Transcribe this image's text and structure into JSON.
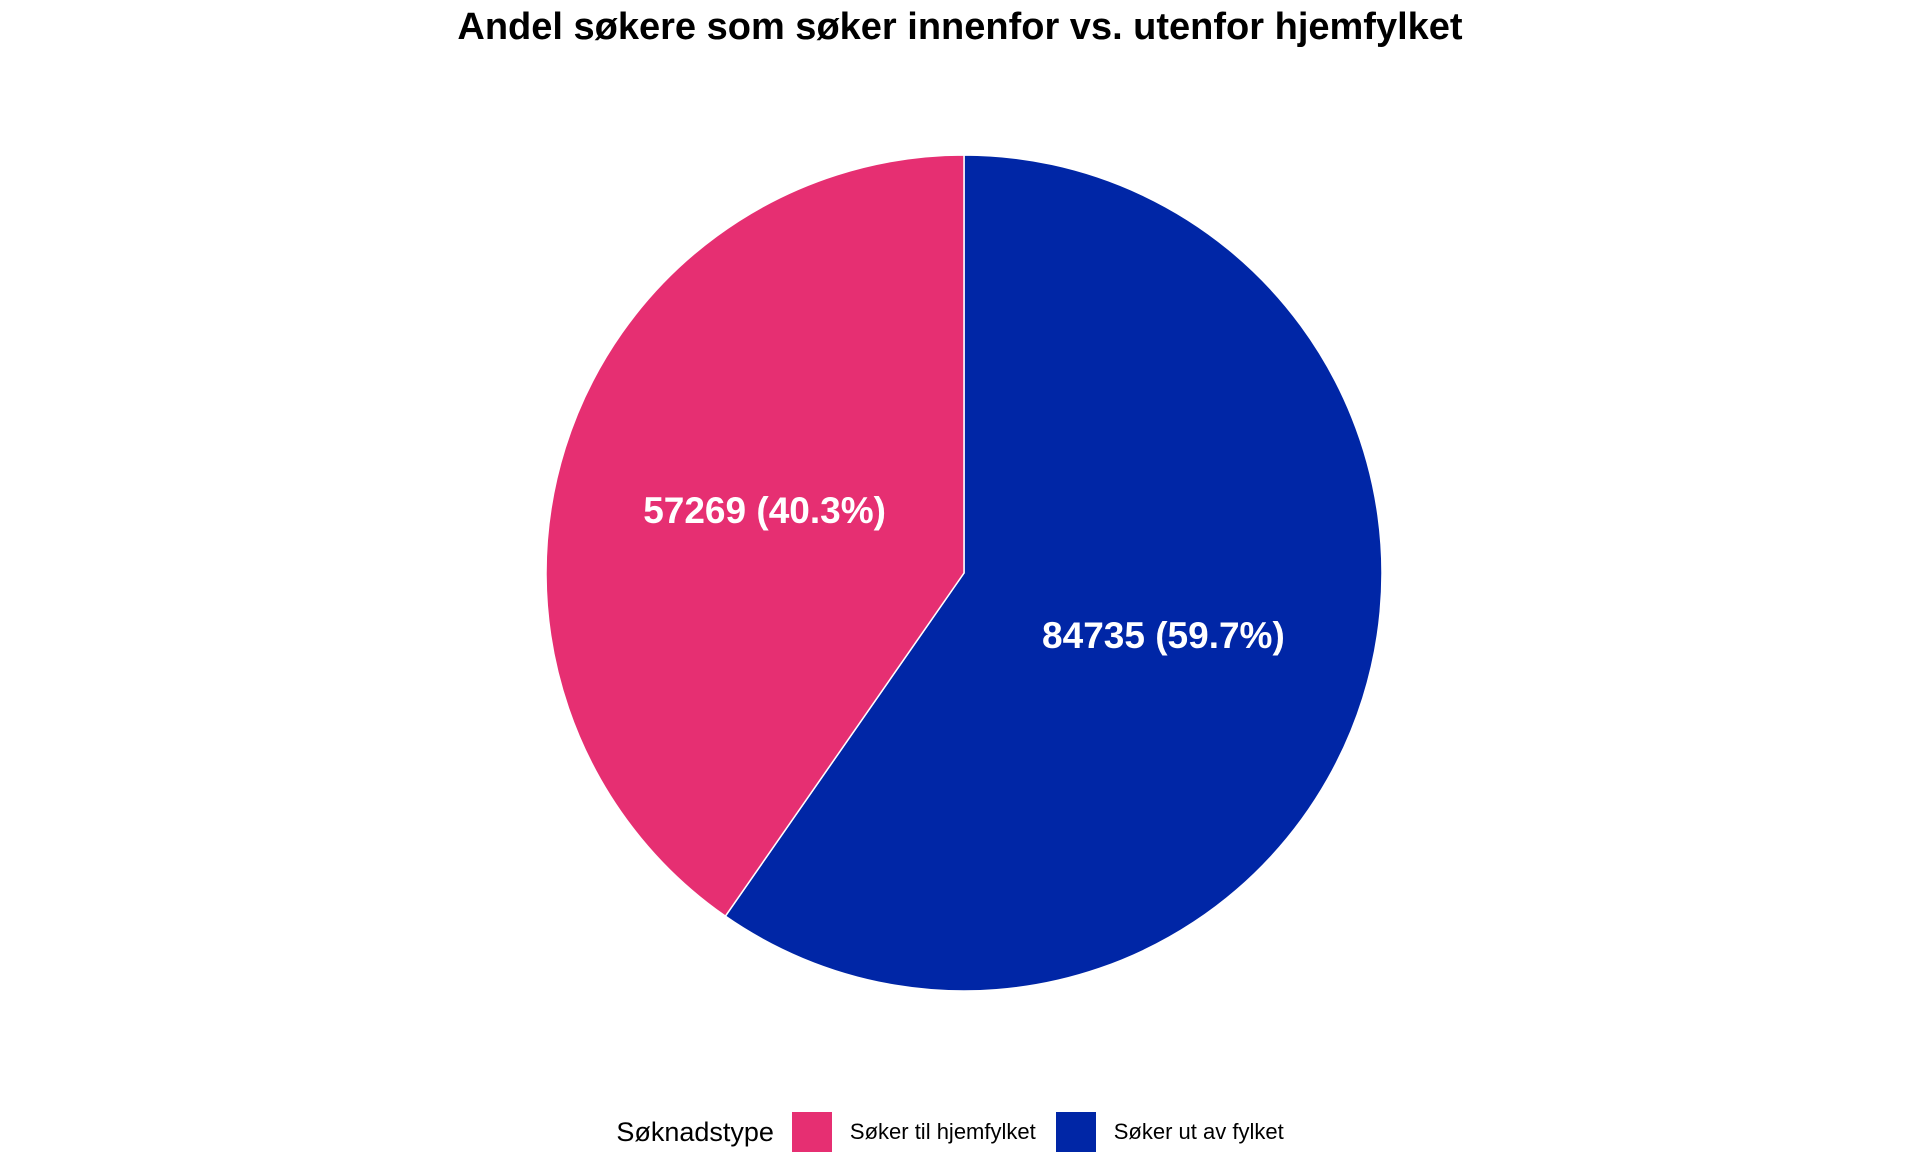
{
  "chart_data": {
    "type": "pie",
    "title": "Andel søkere som søker innenfor vs. utenfor hjemfylket",
    "legend_title": "Søknadstype",
    "legend_position": "bottom",
    "slices": [
      {
        "name": "Søker ut av fylket",
        "value": 84735,
        "percent": 59.7,
        "label": "84735 (59.7%)",
        "color": "#0026A6"
      },
      {
        "name": "Søker til hjemfylket",
        "value": 57269,
        "percent": 40.3,
        "label": "57269 (40.3%)",
        "color": "#E62F72"
      }
    ],
    "legend": [
      {
        "name": "Søker til hjemfylket",
        "color": "#E62F72"
      },
      {
        "name": "Søker ut av fylket",
        "color": "#0026A6"
      }
    ]
  }
}
